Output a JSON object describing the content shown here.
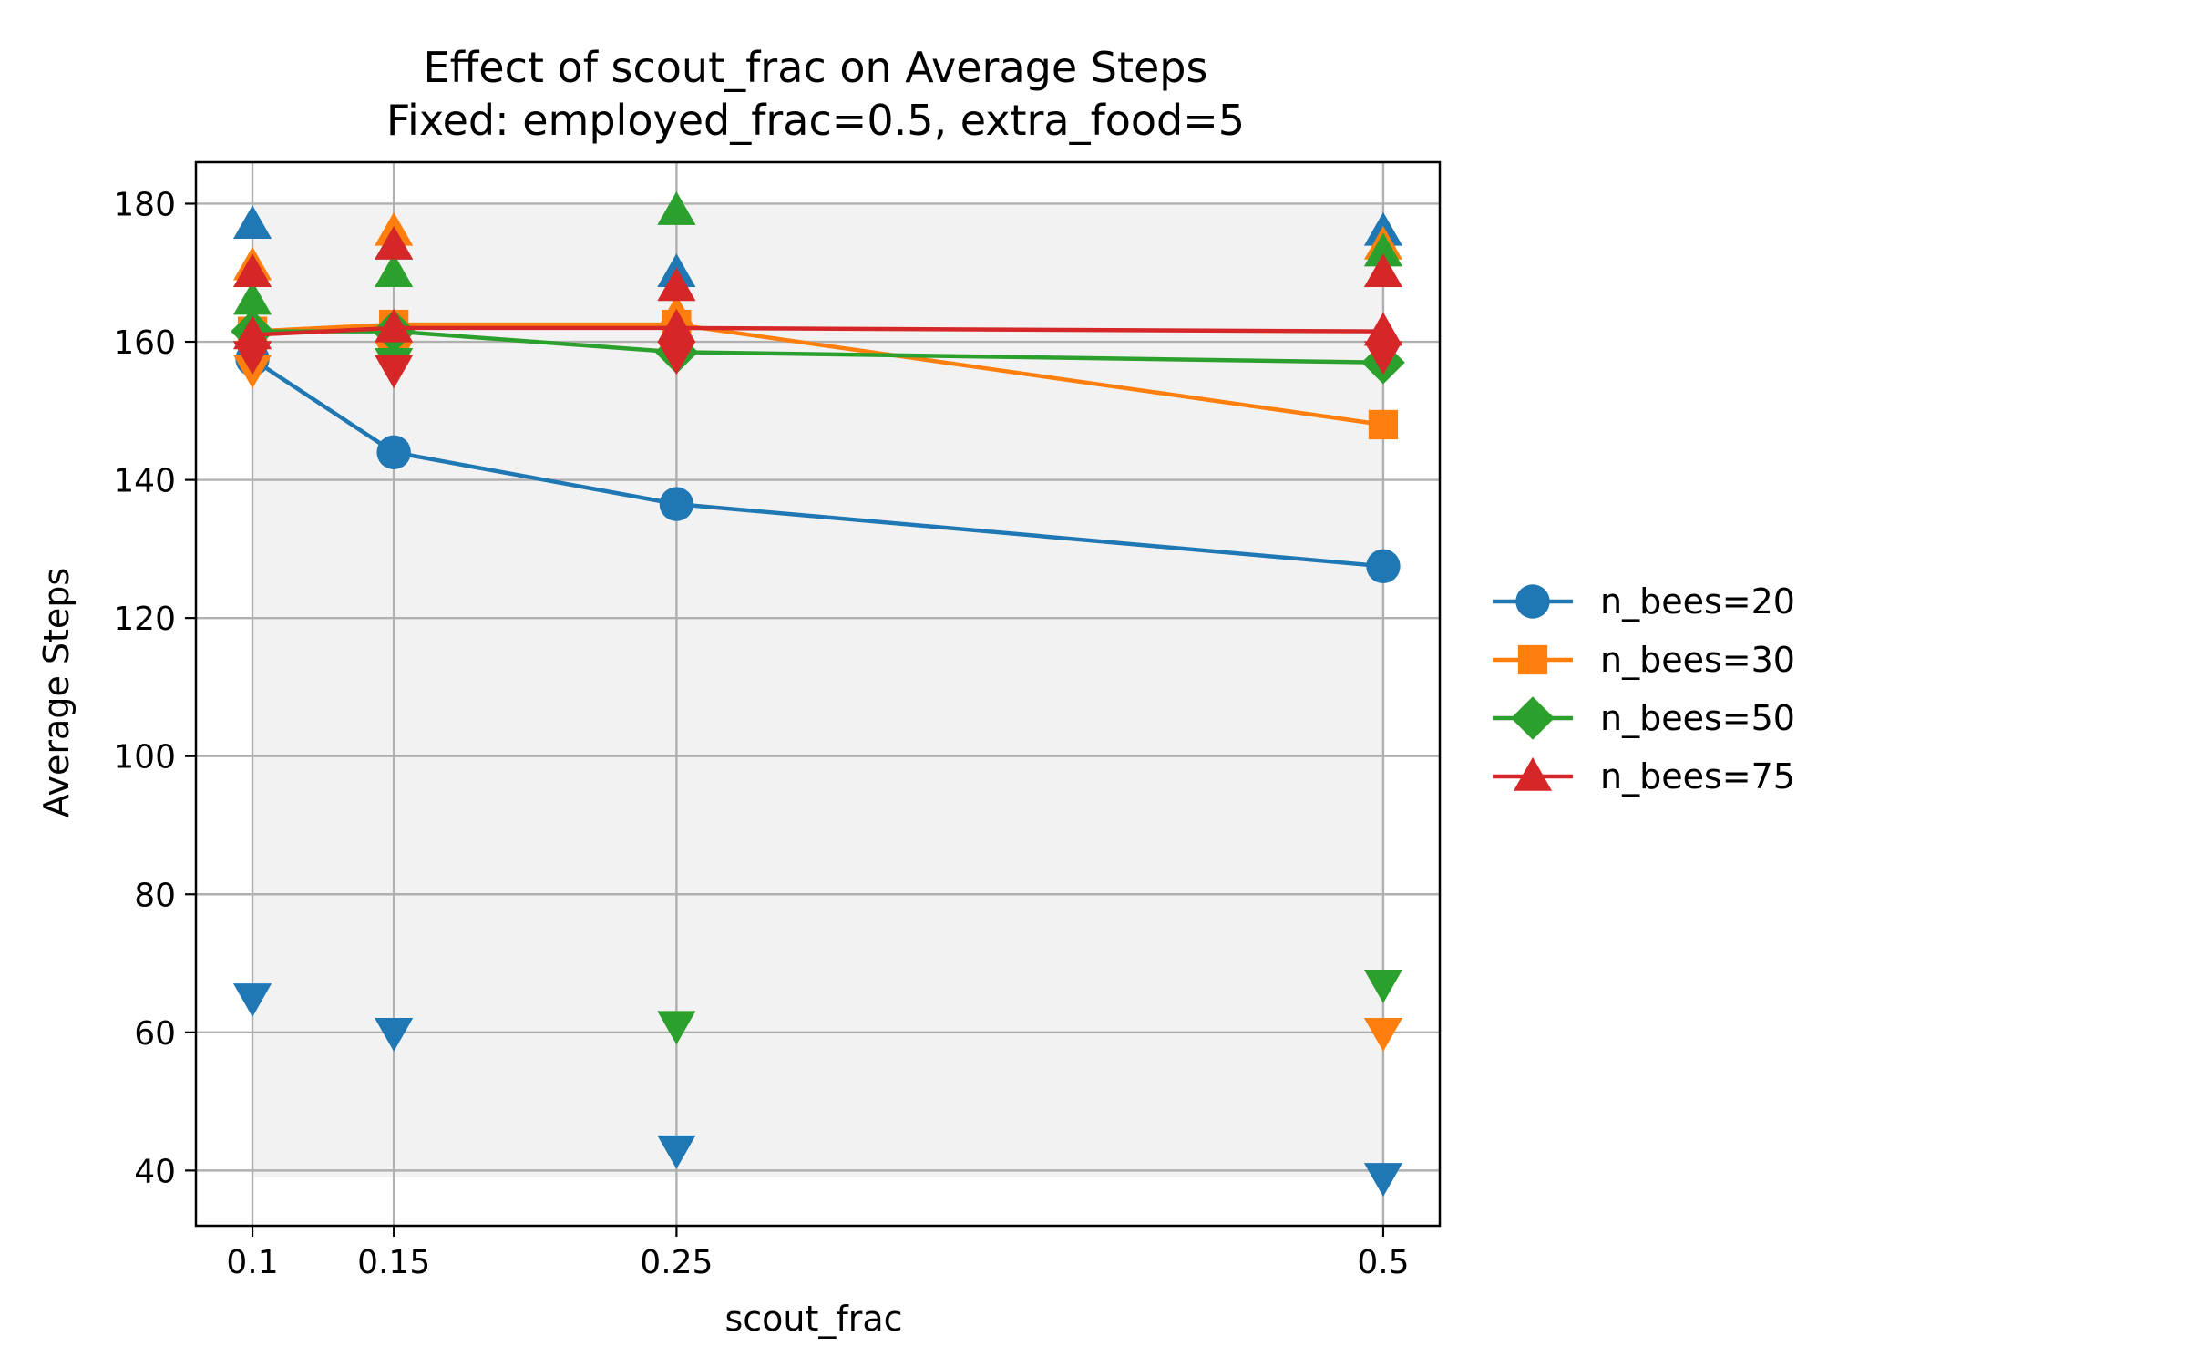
{
  "chart_data": {
    "type": "line",
    "title": "Effect of scout_frac on Average Steps",
    "subtitle": "Fixed: employed_frac=0.5, extra_food=5",
    "xlabel": "scout_frac",
    "ylabel": "Average Steps",
    "x": [
      0.1,
      0.15,
      0.25,
      0.5
    ],
    "x_tick_labels": [
      "0.1",
      "0.15",
      "0.25",
      "0.5"
    ],
    "xlim": [
      0.08,
      0.52
    ],
    "ylim": [
      32,
      186
    ],
    "y_ticks": [
      40,
      60,
      80,
      100,
      120,
      140,
      160,
      180
    ],
    "grid": true,
    "shaded_band": [
      39,
      180
    ],
    "legend_position": "center right, outside plot",
    "series": [
      {
        "name": "n_bees=20",
        "color": "#1f77b4",
        "marker": "circle",
        "values": [
          157.5,
          144,
          136.5,
          127.5
        ],
        "max": [
          177,
          174,
          170,
          176
        ],
        "min": [
          65,
          60,
          43,
          39
        ]
      },
      {
        "name": "n_bees=30",
        "color": "#ff7f0e",
        "marker": "square",
        "values": [
          161.5,
          162.5,
          162.5,
          148
        ],
        "max": [
          171,
          176,
          164,
          174
        ],
        "min": [
          156,
          158,
          158,
          60
        ]
      },
      {
        "name": "n_bees=50",
        "color": "#2ca02c",
        "marker": "diamond",
        "values": [
          161.5,
          161.5,
          158.5,
          157
        ],
        "max": [
          166,
          170,
          179,
          173
        ],
        "min": [
          158,
          157,
          61,
          67
        ]
      },
      {
        "name": "n_bees=75",
        "color": "#d62728",
        "marker": "triangle",
        "values": [
          161,
          162,
          162,
          161.5
        ],
        "max": [
          170,
          174,
          168,
          170
        ],
        "min": [
          158,
          156,
          158,
          158
        ]
      }
    ]
  }
}
